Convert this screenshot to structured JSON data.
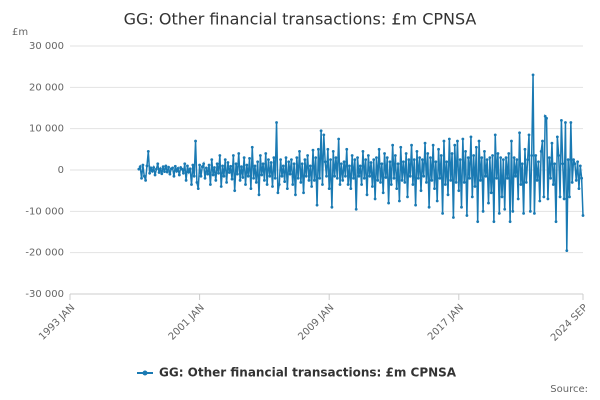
{
  "chart_data": {
    "type": "line",
    "title": "GG: Other financial transactions: £m CPNSA",
    "ylabel": "£m",
    "source": "Source:",
    "xlim": [
      "1993 JAN",
      "2024 SEP"
    ],
    "xticks": [
      "1993 JAN",
      "2001 JAN",
      "2009 JAN",
      "2017 JAN",
      "2024 SEP"
    ],
    "ylim": [
      -30000,
      30000
    ],
    "yticks": [
      {
        "value": -30000,
        "label": "-30 000"
      },
      {
        "value": -20000,
        "label": "-20 000"
      },
      {
        "value": -10000,
        "label": "-10 000"
      },
      0,
      {
        "value": 10000,
        "label": "10 000"
      },
      {
        "value": 20000,
        "label": "20 000"
      },
      {
        "value": 30000,
        "label": "30 000"
      }
    ],
    "grid": true,
    "legend": "bottom",
    "x": [
      "1997 APR",
      "1997 MAY",
      "1997 JUN",
      "1997 JUL",
      "1997 AUG",
      "1997 SEP",
      "1997 OCT",
      "1997 NOV",
      "1997 DEC",
      "1998 JAN",
      "1998 FEB",
      "1998 MAR",
      "1998 APR",
      "1998 MAY",
      "1998 JUN",
      "1998 JUL",
      "1998 AUG",
      "1998 SEP",
      "1998 OCT",
      "1998 NOV",
      "1998 DEC",
      "1999 JAN",
      "1999 FEB",
      "1999 MAR",
      "1999 APR",
      "1999 MAY",
      "1999 JUN",
      "1999 JUL",
      "1999 AUG",
      "1999 SEP",
      "1999 OCT",
      "1999 NOV",
      "1999 DEC",
      "2000 JAN",
      "2000 FEB",
      "2000 MAR",
      "2000 APR",
      "2000 MAY",
      "2000 JUN",
      "2000 JUL",
      "2000 AUG",
      "2000 SEP",
      "2000 OCT",
      "2000 NOV",
      "2000 DEC",
      "2001 JAN",
      "2001 FEB",
      "2001 MAR",
      "2001 APR",
      "2001 MAY",
      "2001 JUN",
      "2001 JUL",
      "2001 AUG",
      "2001 SEP",
      "2001 OCT",
      "2001 NOV",
      "2001 DEC",
      "2002 JAN",
      "2002 FEB",
      "2002 MAR",
      "2002 APR",
      "2002 MAY",
      "2002 JUN",
      "2002 JUL",
      "2002 AUG",
      "2002 SEP",
      "2002 OCT",
      "2002 NOV",
      "2002 DEC",
      "2003 JAN",
      "2003 FEB",
      "2003 MAR",
      "2003 APR",
      "2003 MAY",
      "2003 JUN",
      "2003 JUL",
      "2003 AUG",
      "2003 SEP",
      "2003 OCT",
      "2003 NOV",
      "2003 DEC",
      "2004 JAN",
      "2004 FEB",
      "2004 MAR",
      "2004 APR",
      "2004 MAY",
      "2004 JUN",
      "2004 JUL",
      "2004 AUG",
      "2004 SEP",
      "2004 OCT",
      "2004 NOV",
      "2004 DEC",
      "2005 JAN",
      "2005 FEB",
      "2005 MAR",
      "2005 APR",
      "2005 MAY",
      "2005 JUN",
      "2005 JUL",
      "2005 AUG",
      "2005 SEP",
      "2005 OCT",
      "2005 NOV",
      "2005 DEC",
      "2006 JAN",
      "2006 FEB",
      "2006 MAR",
      "2006 APR",
      "2006 MAY",
      "2006 JUN",
      "2006 JUL",
      "2006 AUG",
      "2006 SEP",
      "2006 OCT",
      "2006 NOV",
      "2006 DEC",
      "2007 JAN",
      "2007 FEB",
      "2007 MAR",
      "2007 APR",
      "2007 MAY",
      "2007 JUN",
      "2007 JUL",
      "2007 AUG",
      "2007 SEP",
      "2007 OCT",
      "2007 NOV",
      "2007 DEC",
      "2008 JAN",
      "2008 FEB",
      "2008 MAR",
      "2008 APR",
      "2008 MAY",
      "2008 JUN",
      "2008 JUL",
      "2008 AUG",
      "2008 SEP",
      "2008 OCT",
      "2008 NOV",
      "2008 DEC",
      "2009 JAN",
      "2009 FEB",
      "2009 MAR",
      "2009 APR",
      "2009 MAY",
      "2009 JUN",
      "2009 JUL",
      "2009 AUG",
      "2009 SEP",
      "2009 OCT",
      "2009 NOV",
      "2009 DEC",
      "2010 JAN",
      "2010 FEB",
      "2010 MAR",
      "2010 APR",
      "2010 MAY",
      "2010 JUN",
      "2010 JUL",
      "2010 AUG",
      "2010 SEP",
      "2010 OCT",
      "2010 NOV",
      "2010 DEC",
      "2011 JAN",
      "2011 FEB",
      "2011 MAR",
      "2011 APR",
      "2011 MAY",
      "2011 JUN",
      "2011 JUL",
      "2011 AUG",
      "2011 SEP",
      "2011 OCT",
      "2011 NOV",
      "2011 DEC",
      "2012 JAN",
      "2012 FEB",
      "2012 MAR",
      "2012 APR",
      "2012 MAY",
      "2012 JUN",
      "2012 JUL",
      "2012 AUG",
      "2012 SEP",
      "2012 OCT",
      "2012 NOV",
      "2012 DEC",
      "2013 JAN",
      "2013 FEB",
      "2013 MAR",
      "2013 APR",
      "2013 MAY",
      "2013 JUN",
      "2013 JUL",
      "2013 AUG",
      "2013 SEP",
      "2013 OCT",
      "2013 NOV",
      "2013 DEC",
      "2014 JAN",
      "2014 FEB",
      "2014 MAR",
      "2014 APR",
      "2014 MAY",
      "2014 JUN",
      "2014 JUL",
      "2014 AUG",
      "2014 SEP",
      "2014 OCT",
      "2014 NOV",
      "2014 DEC",
      "2015 JAN",
      "2015 FEB",
      "2015 MAR",
      "2015 APR",
      "2015 MAY",
      "2015 JUN",
      "2015 JUL",
      "2015 AUG",
      "2015 SEP",
      "2015 OCT",
      "2015 NOV",
      "2015 DEC",
      "2016 JAN",
      "2016 FEB",
      "2016 MAR",
      "2016 APR",
      "2016 MAY",
      "2016 JUN",
      "2016 JUL",
      "2016 AUG",
      "2016 SEP",
      "2016 OCT",
      "2016 NOV",
      "2016 DEC",
      "2017 JAN",
      "2017 FEB",
      "2017 MAR",
      "2017 APR",
      "2017 MAY",
      "2017 JUN",
      "2017 JUL",
      "2017 AUG",
      "2017 SEP",
      "2017 OCT",
      "2017 NOV",
      "2017 DEC",
      "2018 JAN",
      "2018 FEB",
      "2018 MAR",
      "2018 APR",
      "2018 MAY",
      "2018 JUN",
      "2018 JUL",
      "2018 AUG",
      "2018 SEP",
      "2018 OCT",
      "2018 NOV",
      "2018 DEC",
      "2019 JAN",
      "2019 FEB",
      "2019 MAR",
      "2019 APR",
      "2019 MAY",
      "2019 JUN",
      "2019 JUL",
      "2019 AUG",
      "2019 SEP",
      "2019 OCT",
      "2019 NOV",
      "2019 DEC",
      "2020 JAN",
      "2020 FEB",
      "2020 MAR",
      "2020 APR",
      "2020 MAY",
      "2020 JUN",
      "2020 JUL",
      "2020 AUG",
      "2020 SEP",
      "2020 OCT",
      "2020 NOV",
      "2020 DEC",
      "2021 JAN",
      "2021 FEB",
      "2021 MAR",
      "2021 APR",
      "2021 MAY",
      "2021 JUN",
      "2021 JUL",
      "2021 AUG",
      "2021 SEP",
      "2021 OCT",
      "2021 NOV",
      "2021 DEC",
      "2022 JAN",
      "2022 FEB",
      "2022 MAR",
      "2022 APR",
      "2022 MAY",
      "2022 JUN",
      "2022 JUL",
      "2022 AUG",
      "2022 SEP",
      "2022 OCT",
      "2022 NOV",
      "2022 DEC",
      "2023 JAN",
      "2023 FEB",
      "2023 MAR",
      "2023 APR",
      "2023 MAY",
      "2023 JUN",
      "2023 JUL",
      "2023 AUG",
      "2023 SEP",
      "2023 OCT",
      "2023 NOV",
      "2023 DEC",
      "2024 JAN",
      "2024 FEB",
      "2024 MAR",
      "2024 APR",
      "2024 MAY",
      "2024 JUN",
      "2024 JUL",
      "2024 AUG",
      "2024 SEP"
    ],
    "series": [
      {
        "name": "GG: Other financial transactions: £m CPNSA",
        "color": "#1a7ab3",
        "values": [
          200,
          800,
          -2000,
          1200,
          -1500,
          -2500,
          1000,
          4500,
          -800,
          500,
          -300,
          600,
          -1200,
          200,
          1500,
          -600,
          300,
          -900,
          800,
          -400,
          1000,
          -500,
          700,
          -1000,
          300,
          500,
          -1500,
          900,
          -300,
          400,
          -1200,
          600,
          200,
          -800,
          1500,
          -2500,
          1000,
          -500,
          300,
          -3500,
          1200,
          -1500,
          7000,
          -3000,
          -4500,
          1200,
          -1500,
          800,
          1500,
          -2000,
          500,
          -1000,
          1200,
          -3500,
          2500,
          -1200,
          600,
          -2500,
          1500,
          -800,
          3500,
          -4000,
          1000,
          -1500,
          2500,
          -3000,
          1800,
          -600,
          900,
          -2200,
          3500,
          -5000,
          1500,
          -1000,
          4000,
          -2500,
          800,
          -1800,
          3000,
          -3500,
          1200,
          -1500,
          2800,
          -4500,
          5500,
          -2000,
          1000,
          -3000,
          2000,
          -6000,
          3500,
          -1200,
          1500,
          -2500,
          4000,
          -3500,
          2500,
          -1500,
          1800,
          -4000,
          3000,
          -2000,
          11500,
          -5500,
          -3500,
          2500,
          -1500,
          1000,
          -2800,
          3000,
          -4500,
          2000,
          -1000,
          2500,
          -3500,
          1500,
          -6000,
          3000,
          -2000,
          4500,
          -3000,
          1500,
          -5500,
          2500,
          -1500,
          3500,
          -2500,
          1000,
          -4000,
          4800,
          -2500,
          3000,
          -8500,
          5000,
          -2000,
          9500,
          -3500,
          8500,
          2000,
          -1500,
          5000,
          -4500,
          2500,
          -9000,
          4500,
          -1500,
          3000,
          -2000,
          7500,
          -3500,
          1500,
          -2500,
          2000,
          -1500,
          5000,
          -3500,
          1000,
          -4500,
          3500,
          -2000,
          2500,
          -9500,
          3000,
          -1500,
          1000,
          -3500,
          4500,
          -2000,
          2500,
          -6000,
          3500,
          -1500,
          1800,
          -4000,
          2500,
          -7000,
          3000,
          -2500,
          5000,
          -3000,
          1500,
          -5500,
          4000,
          -1800,
          3000,
          -8000,
          2000,
          -3500,
          6000,
          -2000,
          3500,
          -4500,
          1500,
          -7500,
          5500,
          -2500,
          2000,
          -3000,
          4000,
          -6500,
          2500,
          -1500,
          6000,
          -3500,
          2500,
          -8500,
          4500,
          -2000,
          3000,
          -5000,
          2500,
          -1500,
          6500,
          -3000,
          4000,
          -9000,
          3000,
          -2500,
          6000,
          -4500,
          2000,
          -7500,
          5000,
          -2000,
          3500,
          -10500,
          7000,
          -3500,
          2000,
          -6000,
          7500,
          -2500,
          4000,
          -11500,
          6000,
          -3000,
          7000,
          -5000,
          2500,
          -9000,
          7500,
          -3000,
          4500,
          -11000,
          3000,
          -2000,
          8000,
          -6500,
          3500,
          -4000,
          5500,
          -12500,
          7000,
          -2500,
          3000,
          -10000,
          4500,
          -1500,
          2500,
          -8000,
          3000,
          -5500,
          3500,
          -12500,
          8500,
          -2000,
          4000,
          -10500,
          3000,
          -6500,
          2500,
          -9500,
          3000,
          -2000,
          4000,
          -12500,
          7000,
          -10000,
          3000,
          -1500,
          2500,
          -7000,
          9000,
          -3500,
          1500,
          -10500,
          5000,
          -3000,
          2500,
          8500,
          -10000,
          3500,
          23000,
          -10500,
          3500,
          -2500,
          2000,
          -7500,
          4500,
          7000,
          -6500,
          13000,
          12500,
          -7000,
          3000,
          -2000,
          6500,
          -3500,
          1500,
          -12500,
          8000,
          3500,
          -6500,
          12000,
          1500,
          -7000,
          11500,
          -19500,
          2500,
          -6500,
          11500,
          -3000,
          2500,
          1500,
          -2500,
          2000,
          -4500,
          1000,
          -2000,
          -11000
        ]
      }
    ]
  }
}
